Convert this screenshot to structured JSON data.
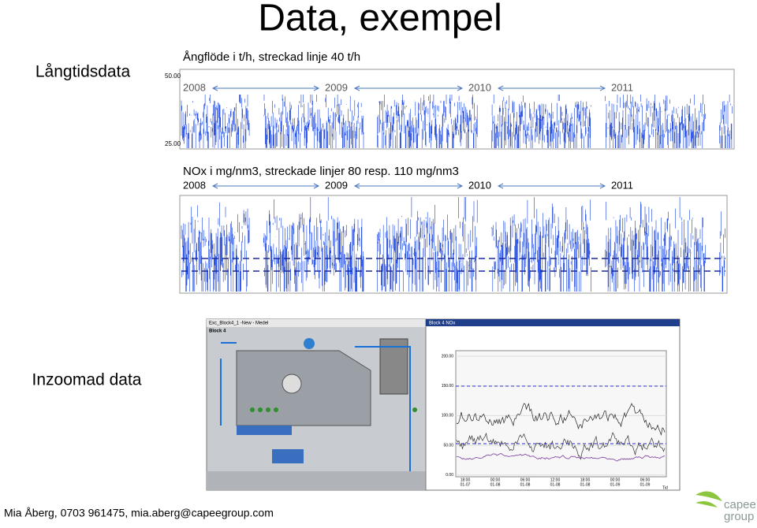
{
  "header": {
    "title": "Data, exempel"
  },
  "sections": [
    {
      "label": "Långtidsdata"
    },
    {
      "label": "Inzoomad data"
    }
  ],
  "long_term": {
    "steam": {
      "caption": "Ångflöde i t/h, streckad linje 40 t/h",
      "y_top": "50.00",
      "y_bottom": "25.00",
      "years": [
        "2008",
        "2009",
        "2010",
        "2011"
      ]
    },
    "nox": {
      "caption": "NOx i mg/nm3, streckade linjer 80 resp. 110 mg/nm3",
      "years": [
        "2008",
        "2009",
        "2010",
        "2011"
      ]
    }
  },
  "zoom": {
    "process_window": "Exc_Block4_1 -New - Medel",
    "process_title": "Block 4",
    "trend_window": "Block 4 NOx",
    "trend_axis": [
      "200.00",
      "150.00",
      "100.00",
      "50.00",
      "0.00"
    ],
    "time_labels": [
      {
        "time": "18:00",
        "date": "01-07"
      },
      {
        "time": "00:00",
        "date": "01-08"
      },
      {
        "time": "06:00",
        "date": "01-08"
      },
      {
        "time": "12:00",
        "date": "01-08"
      },
      {
        "time": "18:00",
        "date": "01-08"
      },
      {
        "time": "00:00",
        "date": "01-09"
      },
      {
        "time": "06:00",
        "date": "01-09"
      }
    ],
    "time_unit": "Tid"
  },
  "footer": {
    "contact": "Mia Åberg, 0703 961475, mia.aberg@capeegroup.com",
    "logo": [
      "capee",
      "group"
    ]
  }
}
